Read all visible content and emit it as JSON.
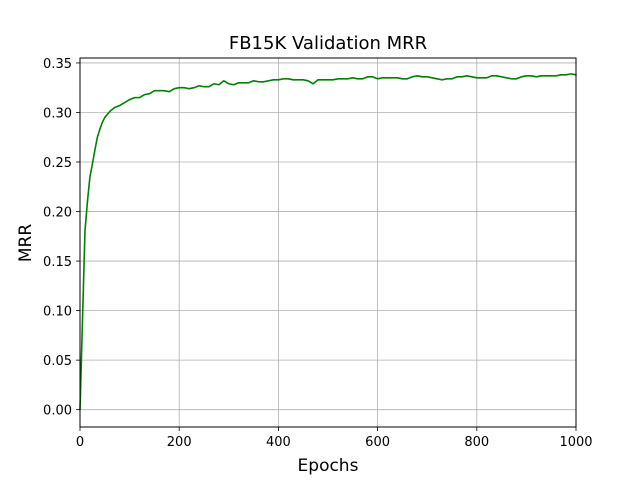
{
  "chart_data": {
    "type": "line",
    "title": "FB15K Validation MRR",
    "xlabel": "Epochs",
    "ylabel": "MRR",
    "xlim": [
      0,
      1000
    ],
    "ylim": [
      -0.0175,
      0.355
    ],
    "xticks": [
      0,
      200,
      400,
      600,
      800,
      1000
    ],
    "xtick_labels": [
      "0",
      "200",
      "400",
      "600",
      "800",
      "1000"
    ],
    "yticks": [
      0.0,
      0.05,
      0.1,
      0.15,
      0.2,
      0.25,
      0.3,
      0.35
    ],
    "ytick_labels": [
      "0.00",
      "0.05",
      "0.10",
      "0.15",
      "0.20",
      "0.25",
      "0.30",
      "0.35"
    ],
    "grid": true,
    "series": [
      {
        "color": "#008000",
        "x": [
          0,
          5,
          10,
          15,
          20,
          25,
          30,
          35,
          40,
          45,
          50,
          55,
          60,
          65,
          70,
          80,
          90,
          100,
          110,
          120,
          130,
          140,
          150,
          160,
          170,
          180,
          190,
          200,
          210,
          220,
          230,
          240,
          250,
          260,
          270,
          280,
          290,
          300,
          310,
          320,
          330,
          340,
          350,
          360,
          370,
          380,
          390,
          400,
          410,
          420,
          430,
          440,
          450,
          460,
          470,
          480,
          490,
          500,
          510,
          520,
          530,
          540,
          550,
          560,
          570,
          580,
          590,
          600,
          610,
          620,
          630,
          640,
          650,
          660,
          670,
          680,
          690,
          700,
          710,
          720,
          730,
          740,
          750,
          760,
          770,
          780,
          790,
          800,
          810,
          820,
          830,
          840,
          850,
          860,
          870,
          880,
          890,
          900,
          910,
          920,
          930,
          940,
          950,
          960,
          970,
          980,
          990,
          1000
        ],
        "y": [
          0.0,
          0.09,
          0.18,
          0.21,
          0.235,
          0.248,
          0.262,
          0.275,
          0.283,
          0.29,
          0.295,
          0.298,
          0.301,
          0.303,
          0.305,
          0.307,
          0.31,
          0.313,
          0.315,
          0.315,
          0.318,
          0.319,
          0.322,
          0.322,
          0.322,
          0.321,
          0.324,
          0.325,
          0.325,
          0.324,
          0.325,
          0.327,
          0.326,
          0.326,
          0.329,
          0.328,
          0.332,
          0.329,
          0.328,
          0.33,
          0.33,
          0.33,
          0.332,
          0.331,
          0.331,
          0.332,
          0.333,
          0.333,
          0.334,
          0.334,
          0.333,
          0.333,
          0.333,
          0.332,
          0.329,
          0.333,
          0.333,
          0.333,
          0.333,
          0.334,
          0.334,
          0.334,
          0.335,
          0.334,
          0.334,
          0.336,
          0.336,
          0.334,
          0.335,
          0.335,
          0.335,
          0.335,
          0.334,
          0.334,
          0.336,
          0.337,
          0.336,
          0.336,
          0.335,
          0.334,
          0.333,
          0.334,
          0.334,
          0.336,
          0.336,
          0.337,
          0.336,
          0.335,
          0.335,
          0.335,
          0.337,
          0.337,
          0.336,
          0.335,
          0.334,
          0.334,
          0.336,
          0.337,
          0.337,
          0.336,
          0.337,
          0.337,
          0.337,
          0.337,
          0.338,
          0.338,
          0.339,
          0.338
        ]
      }
    ]
  }
}
